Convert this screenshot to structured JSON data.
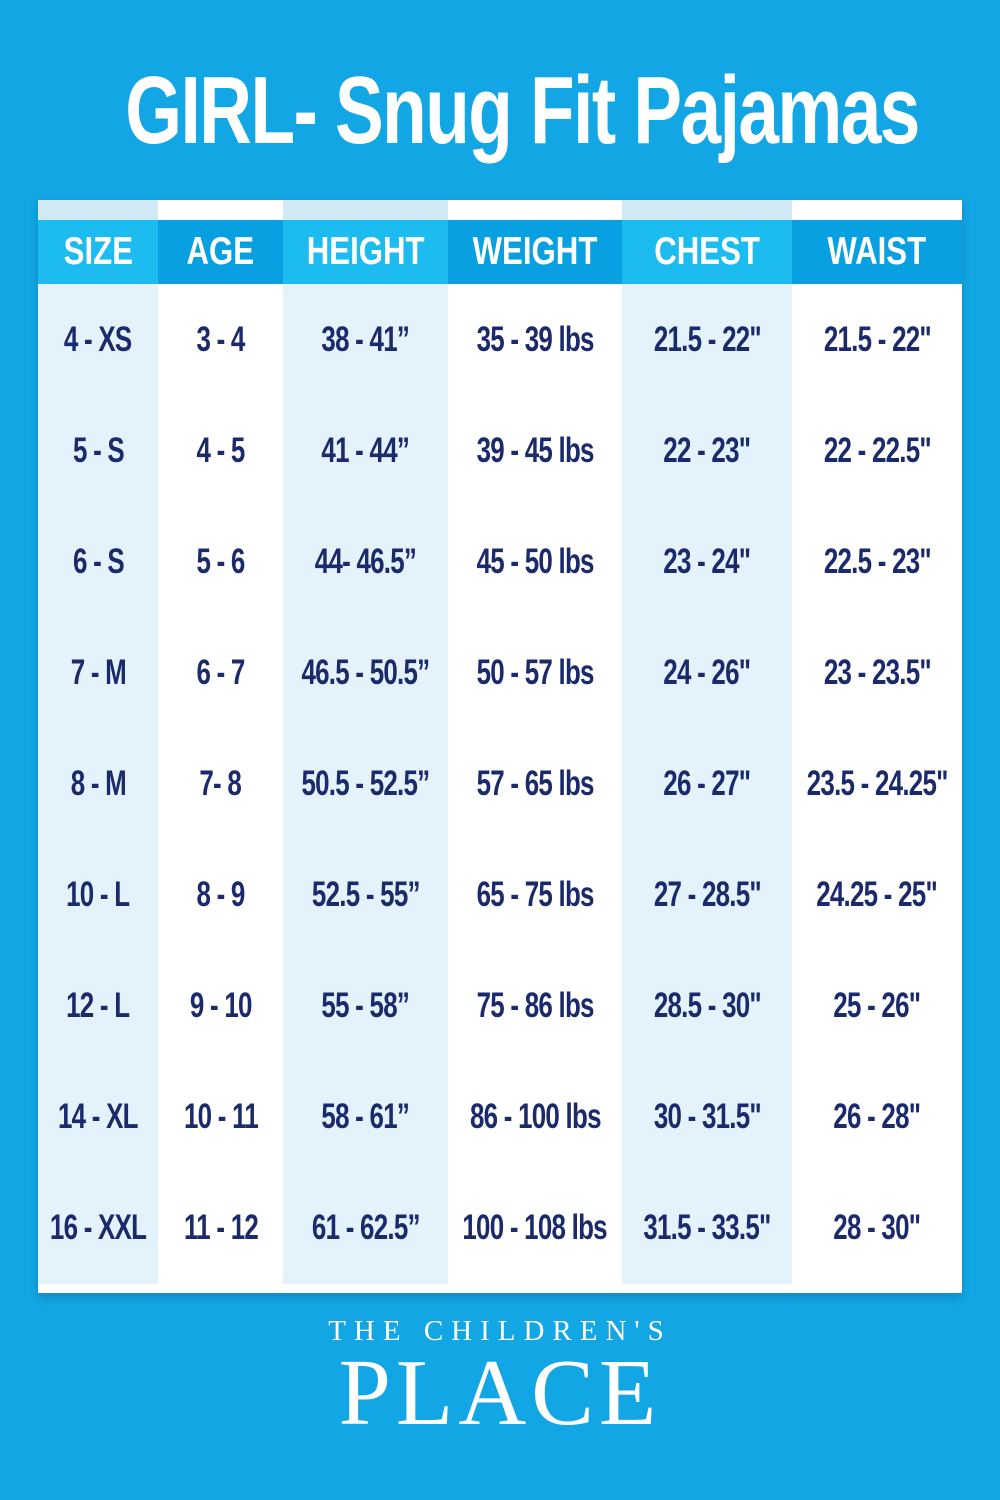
{
  "title": "GIRL- Snug Fit Pajamas",
  "chart_data": {
    "type": "table",
    "title": "GIRL- Snug Fit Pajamas",
    "columns": [
      "SIZE",
      "AGE",
      "HEIGHT",
      "WEIGHT",
      "CHEST",
      "WAIST"
    ],
    "rows": [
      [
        "4 - XS",
        "3 - 4",
        "38 - 41”",
        "35 - 39 lbs",
        "21.5 - 22\"",
        "21.5 - 22\""
      ],
      [
        "5 - S",
        "4 - 5",
        "41 - 44”",
        "39 - 45 lbs",
        "22 - 23\"",
        "22 - 22.5\""
      ],
      [
        "6 - S",
        "5 - 6",
        "44- 46.5”",
        "45 - 50 lbs",
        "23 - 24\"",
        "22.5 - 23\""
      ],
      [
        "7 - M",
        "6 - 7",
        "46.5 - 50.5”",
        "50 - 57 lbs",
        "24 - 26\"",
        "23 - 23.5\""
      ],
      [
        "8 - M",
        "7- 8",
        "50.5 - 52.5”",
        "57 - 65 lbs",
        "26 - 27\"",
        "23.5 - 24.25\""
      ],
      [
        "10 - L",
        "8 - 9",
        "52.5 - 55”",
        "65 - 75 lbs",
        "27 - 28.5\"",
        "24.25 - 25\""
      ],
      [
        "12 - L",
        "9 - 10",
        "55 - 58”",
        "75 - 86 lbs",
        "28.5 - 30\"",
        "25 - 26\""
      ],
      [
        "14 - XL",
        "10 - 11",
        "58 - 61”",
        "86 - 100 lbs",
        "30 - 31.5\"",
        "26 - 28\""
      ],
      [
        "16 - XXL",
        "11 - 12",
        "61 - 62.5”",
        "100 - 108 lbs",
        "31.5 - 33.5\"",
        "28 - 30\""
      ]
    ]
  },
  "footer": {
    "brand_line1": "THE CHILDREN'S",
    "brand_line2": "PLACE"
  },
  "colors": {
    "background": "#12a6e4",
    "header_bright": "#1cbbf0",
    "header_dark": "#08a0e0",
    "column_tint": "#e3f2fb",
    "top_strip_tint": "#d2e9f6",
    "cell_white": "#ffffff",
    "text_navy": "#1b2a6b",
    "text_white": "#ffffff"
  }
}
